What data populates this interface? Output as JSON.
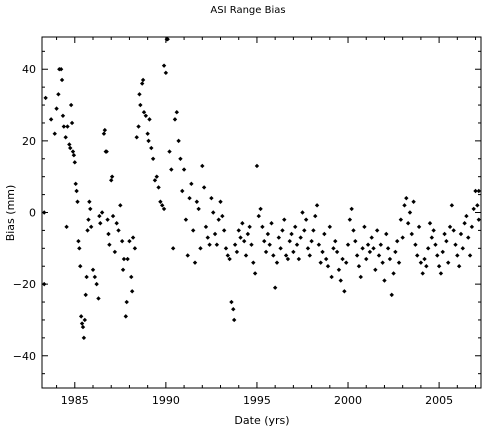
{
  "chart_data": {
    "type": "scatter",
    "title": "ASI Range Bias",
    "xlabel": "Date (yrs)",
    "ylabel": "Bias (mm)",
    "xlim": [
      1983.2,
      2007.3
    ],
    "ylim": [
      -49,
      49
    ],
    "x_ticks": [
      1985,
      1990,
      1995,
      2000,
      2005
    ],
    "y_ticks": [
      -40,
      -20,
      0,
      20,
      40
    ],
    "x_tick_labels": [
      "1985",
      "1990",
      "1995",
      "2000",
      "2005"
    ],
    "y_tick_labels": [
      "−40",
      "−20",
      "0",
      "20",
      "40"
    ],
    "grid": false,
    "legend": "none",
    "marker": "filled-diamond",
    "color": "#000000",
    "series": [
      {
        "points": [
          [
            1983.1,
            0
          ],
          [
            1983.15,
            -20
          ],
          [
            1983.4,
            32
          ],
          [
            1983.7,
            26
          ],
          [
            1983.9,
            22
          ],
          [
            1984.0,
            29
          ],
          [
            1984.1,
            33
          ],
          [
            1984.15,
            40
          ],
          [
            1984.25,
            40
          ],
          [
            1984.3,
            37
          ],
          [
            1984.35,
            27
          ],
          [
            1984.4,
            24
          ],
          [
            1984.5,
            21
          ],
          [
            1984.55,
            -4
          ],
          [
            1984.6,
            24
          ],
          [
            1984.7,
            19
          ],
          [
            1984.75,
            18
          ],
          [
            1984.8,
            30
          ],
          [
            1984.85,
            25
          ],
          [
            1984.9,
            17
          ],
          [
            1984.95,
            16
          ],
          [
            1985.0,
            14
          ],
          [
            1985.05,
            8
          ],
          [
            1985.1,
            6
          ],
          [
            1985.15,
            3
          ],
          [
            1985.2,
            -8
          ],
          [
            1985.25,
            -10
          ],
          [
            1985.3,
            -15
          ],
          [
            1985.35,
            -29
          ],
          [
            1985.4,
            -31
          ],
          [
            1985.45,
            -32
          ],
          [
            1985.5,
            -35
          ],
          [
            1985.55,
            -30
          ],
          [
            1985.6,
            -23
          ],
          [
            1985.65,
            -18
          ],
          [
            1985.7,
            -5
          ],
          [
            1985.75,
            -2
          ],
          [
            1985.8,
            3
          ],
          [
            1985.85,
            1
          ],
          [
            1985.9,
            -4
          ],
          [
            1986.0,
            -16
          ],
          [
            1986.1,
            -18
          ],
          [
            1986.2,
            -20
          ],
          [
            1986.3,
            -24
          ],
          [
            1986.35,
            -1
          ],
          [
            1986.4,
            -3
          ],
          [
            1986.5,
            0
          ],
          [
            1986.6,
            22
          ],
          [
            1986.65,
            23
          ],
          [
            1986.7,
            17
          ],
          [
            1986.75,
            17
          ],
          [
            1986.8,
            -2
          ],
          [
            1986.85,
            -6
          ],
          [
            1986.9,
            -9
          ],
          [
            1987.0,
            9
          ],
          [
            1987.05,
            10
          ],
          [
            1987.1,
            -1
          ],
          [
            1987.2,
            -11
          ],
          [
            1987.3,
            -3
          ],
          [
            1987.4,
            -5
          ],
          [
            1987.5,
            2
          ],
          [
            1987.6,
            -8
          ],
          [
            1987.65,
            -16
          ],
          [
            1987.7,
            -13
          ],
          [
            1987.8,
            -29
          ],
          [
            1987.85,
            -25
          ],
          [
            1987.9,
            -13
          ],
          [
            1988.0,
            -8
          ],
          [
            1988.1,
            -18
          ],
          [
            1988.15,
            -22
          ],
          [
            1988.2,
            -7
          ],
          [
            1988.3,
            -10
          ],
          [
            1988.4,
            21
          ],
          [
            1988.5,
            24
          ],
          [
            1988.55,
            33
          ],
          [
            1988.6,
            30
          ],
          [
            1988.7,
            36
          ],
          [
            1988.75,
            37
          ],
          [
            1988.8,
            28
          ],
          [
            1988.9,
            27
          ],
          [
            1989.0,
            22
          ],
          [
            1989.05,
            20
          ],
          [
            1989.1,
            26
          ],
          [
            1989.2,
            18
          ],
          [
            1989.3,
            15
          ],
          [
            1989.4,
            9
          ],
          [
            1989.5,
            10
          ],
          [
            1989.6,
            7
          ],
          [
            1989.7,
            3
          ],
          [
            1989.8,
            2
          ],
          [
            1989.9,
            1
          ],
          [
            1989.9,
            41
          ],
          [
            1990.0,
            39
          ],
          [
            1990.05,
            49
          ],
          [
            1990.1,
            49
          ],
          [
            1990.2,
            17
          ],
          [
            1990.3,
            12
          ],
          [
            1990.4,
            -10
          ],
          [
            1990.5,
            26
          ],
          [
            1990.6,
            28
          ],
          [
            1990.7,
            20
          ],
          [
            1990.8,
            15
          ],
          [
            1990.9,
            6
          ],
          [
            1991.0,
            12
          ],
          [
            1991.1,
            -2
          ],
          [
            1991.2,
            -12
          ],
          [
            1991.3,
            4
          ],
          [
            1991.4,
            8
          ],
          [
            1991.5,
            -5
          ],
          [
            1991.6,
            -14
          ],
          [
            1991.7,
            3
          ],
          [
            1991.8,
            1
          ],
          [
            1991.9,
            -10
          ],
          [
            1992.0,
            13
          ],
          [
            1992.1,
            7
          ],
          [
            1992.2,
            -4
          ],
          [
            1992.3,
            -7
          ],
          [
            1992.4,
            -9
          ],
          [
            1992.5,
            4
          ],
          [
            1992.6,
            0
          ],
          [
            1992.7,
            -6
          ],
          [
            1992.8,
            -9
          ],
          [
            1992.9,
            -2
          ],
          [
            1993.0,
            3
          ],
          [
            1993.1,
            -1
          ],
          [
            1993.2,
            -5
          ],
          [
            1993.3,
            -10
          ],
          [
            1993.4,
            -12
          ],
          [
            1993.5,
            -13
          ],
          [
            1993.6,
            -25
          ],
          [
            1993.7,
            -27
          ],
          [
            1993.75,
            -30
          ],
          [
            1993.8,
            -9
          ],
          [
            1993.9,
            -11
          ],
          [
            1994.0,
            -5
          ],
          [
            1994.1,
            -7
          ],
          [
            1994.2,
            -3
          ],
          [
            1994.3,
            -8
          ],
          [
            1994.4,
            -12
          ],
          [
            1994.5,
            -6
          ],
          [
            1994.6,
            -4
          ],
          [
            1994.7,
            -9
          ],
          [
            1994.8,
            -14
          ],
          [
            1994.9,
            -17
          ],
          [
            1995.0,
            13
          ],
          [
            1995.1,
            -1
          ],
          [
            1995.2,
            1
          ],
          [
            1995.3,
            -4
          ],
          [
            1995.4,
            -8
          ],
          [
            1995.5,
            -11
          ],
          [
            1995.6,
            -6
          ],
          [
            1995.7,
            -9
          ],
          [
            1995.8,
            -3
          ],
          [
            1995.9,
            -12
          ],
          [
            1996.0,
            -21
          ],
          [
            1996.1,
            -14
          ],
          [
            1996.2,
            -7
          ],
          [
            1996.3,
            -10
          ],
          [
            1996.4,
            -5
          ],
          [
            1996.5,
            -2
          ],
          [
            1996.6,
            -12
          ],
          [
            1996.7,
            -13
          ],
          [
            1996.8,
            -8
          ],
          [
            1996.9,
            -6
          ],
          [
            1997.0,
            -11
          ],
          [
            1997.1,
            -4
          ],
          [
            1997.2,
            -9
          ],
          [
            1997.3,
            -13
          ],
          [
            1997.4,
            -7
          ],
          [
            1997.5,
            0
          ],
          [
            1997.6,
            -5
          ],
          [
            1997.7,
            -2
          ],
          [
            1997.8,
            -10
          ],
          [
            1997.9,
            -12
          ],
          [
            1998.0,
            -8
          ],
          [
            1998.1,
            -5
          ],
          [
            1998.2,
            -1
          ],
          [
            1998.3,
            2
          ],
          [
            1998.4,
            -9
          ],
          [
            1998.5,
            -14
          ],
          [
            1998.6,
            -11
          ],
          [
            1998.7,
            -6
          ],
          [
            1998.8,
            -13
          ],
          [
            1998.9,
            -15
          ],
          [
            1999.0,
            -4
          ],
          [
            1999.1,
            -18
          ],
          [
            1999.2,
            -10
          ],
          [
            1999.3,
            -8
          ],
          [
            1999.4,
            -11
          ],
          [
            1999.5,
            -16
          ],
          [
            1999.6,
            -19
          ],
          [
            1999.7,
            -13
          ],
          [
            1999.8,
            -22
          ],
          [
            1999.9,
            -14
          ],
          [
            2000.0,
            -9
          ],
          [
            2000.1,
            -2
          ],
          [
            2000.2,
            1
          ],
          [
            2000.3,
            -5
          ],
          [
            2000.4,
            -8
          ],
          [
            2000.5,
            -12
          ],
          [
            2000.6,
            -15
          ],
          [
            2000.7,
            -18
          ],
          [
            2000.8,
            -10
          ],
          [
            2000.9,
            -4
          ],
          [
            2001.0,
            -13
          ],
          [
            2001.1,
            -9
          ],
          [
            2001.2,
            -11
          ],
          [
            2001.3,
            -7
          ],
          [
            2001.4,
            -10
          ],
          [
            2001.5,
            -16
          ],
          [
            2001.6,
            -5
          ],
          [
            2001.7,
            -12
          ],
          [
            2001.8,
            -9
          ],
          [
            2001.9,
            -14
          ],
          [
            2002.0,
            -19
          ],
          [
            2002.1,
            -6
          ],
          [
            2002.2,
            -10
          ],
          [
            2002.3,
            -13
          ],
          [
            2002.4,
            -23
          ],
          [
            2002.5,
            -17
          ],
          [
            2002.6,
            -11
          ],
          [
            2002.7,
            -8
          ],
          [
            2002.8,
            -14
          ],
          [
            2002.9,
            -2
          ],
          [
            2003.0,
            -7
          ],
          [
            2003.1,
            2
          ],
          [
            2003.2,
            4
          ],
          [
            2003.3,
            -3
          ],
          [
            2003.4,
            0
          ],
          [
            2003.5,
            -6
          ],
          [
            2003.6,
            3
          ],
          [
            2003.7,
            -9
          ],
          [
            2003.8,
            -12
          ],
          [
            2003.9,
            -4
          ],
          [
            2004.0,
            -14
          ],
          [
            2004.1,
            -17
          ],
          [
            2004.2,
            -13
          ],
          [
            2004.3,
            -15
          ],
          [
            2004.4,
            -10
          ],
          [
            2004.5,
            -3
          ],
          [
            2004.6,
            -7
          ],
          [
            2004.7,
            -5
          ],
          [
            2004.8,
            -9
          ],
          [
            2004.9,
            -12
          ],
          [
            2005.0,
            -15
          ],
          [
            2005.1,
            -17
          ],
          [
            2005.2,
            -11
          ],
          [
            2005.3,
            -6
          ],
          [
            2005.4,
            -8
          ],
          [
            2005.5,
            -14
          ],
          [
            2005.6,
            -4
          ],
          [
            2005.7,
            2
          ],
          [
            2005.8,
            -5
          ],
          [
            2005.9,
            -9
          ],
          [
            2006.0,
            -12
          ],
          [
            2006.1,
            -15
          ],
          [
            2006.2,
            -6
          ],
          [
            2006.3,
            -10
          ],
          [
            2006.4,
            -3
          ],
          [
            2006.5,
            -1
          ],
          [
            2006.6,
            -7
          ],
          [
            2006.7,
            -12
          ],
          [
            2006.8,
            -4
          ],
          [
            2006.9,
            1
          ],
          [
            2007.0,
            6
          ],
          [
            2007.1,
            2
          ],
          [
            2007.2,
            -2
          ],
          [
            2007.25,
            6
          ]
        ]
      }
    ]
  }
}
